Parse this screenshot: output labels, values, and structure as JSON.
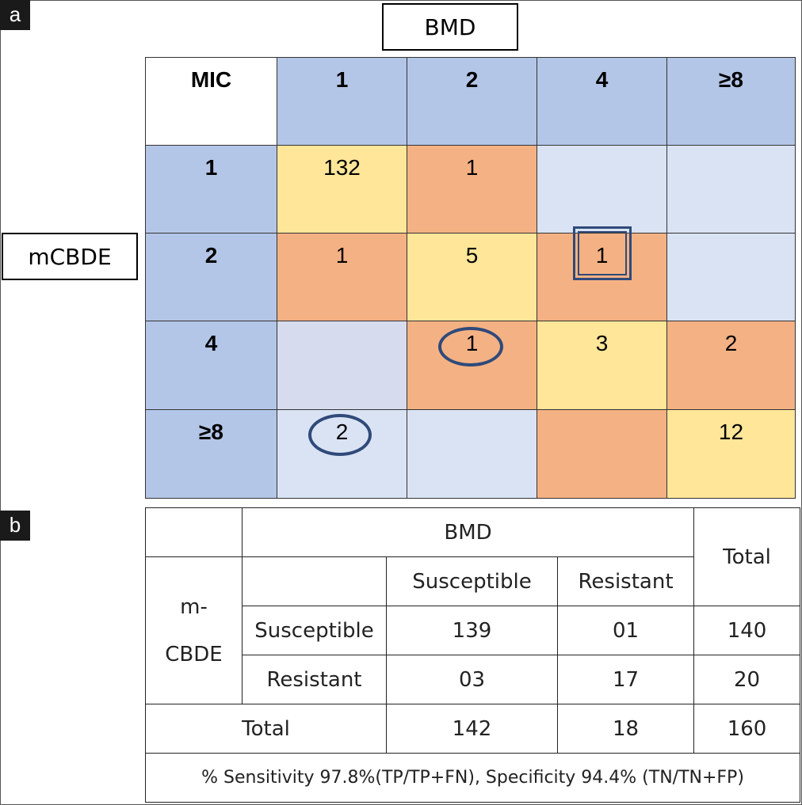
{
  "panels": {
    "a": "a",
    "b": "b"
  },
  "matrix": {
    "col_axis_label": "BMD",
    "row_axis_label": "mCBDE",
    "corner": "MIC",
    "col_headers": [
      "1",
      "2",
      "4",
      "≥8"
    ],
    "rows": [
      {
        "header": "1",
        "cells": [
          "132",
          "1",
          "",
          ""
        ]
      },
      {
        "header": "2",
        "cells": [
          "1",
          "5",
          "1",
          ""
        ]
      },
      {
        "header": "4",
        "cells": [
          "",
          "1",
          "3",
          "2"
        ]
      },
      {
        "header": "≥8",
        "cells": [
          "2",
          "",
          "",
          "12"
        ]
      }
    ],
    "colors": {
      "header": "#b4c6e7",
      "agree": "#ffe699",
      "minor": "#f4b183",
      "empty": "#dae3f3",
      "marker": "#2f4a7a"
    }
  },
  "table": {
    "bmd": "BMD",
    "total_header": "Total",
    "row_group": "m-\nCBDE",
    "row_group_top": "m-",
    "row_group_bottom": "CBDE",
    "col_susceptible": "Susceptible",
    "col_resistant": "Resistant",
    "rows": [
      {
        "label": "Susceptible",
        "susceptible": "139",
        "resistant": "01",
        "total": "140"
      },
      {
        "label": "Resistant",
        "susceptible": "03",
        "resistant": "17",
        "total": "20"
      }
    ],
    "total_row": {
      "label": "Total",
      "susceptible": "142",
      "resistant": "18",
      "total": "160"
    },
    "footer": "% Sensitivity 97.8%(TP/TP+FN), Specificity 94.4% (TN/TN+FP)"
  }
}
